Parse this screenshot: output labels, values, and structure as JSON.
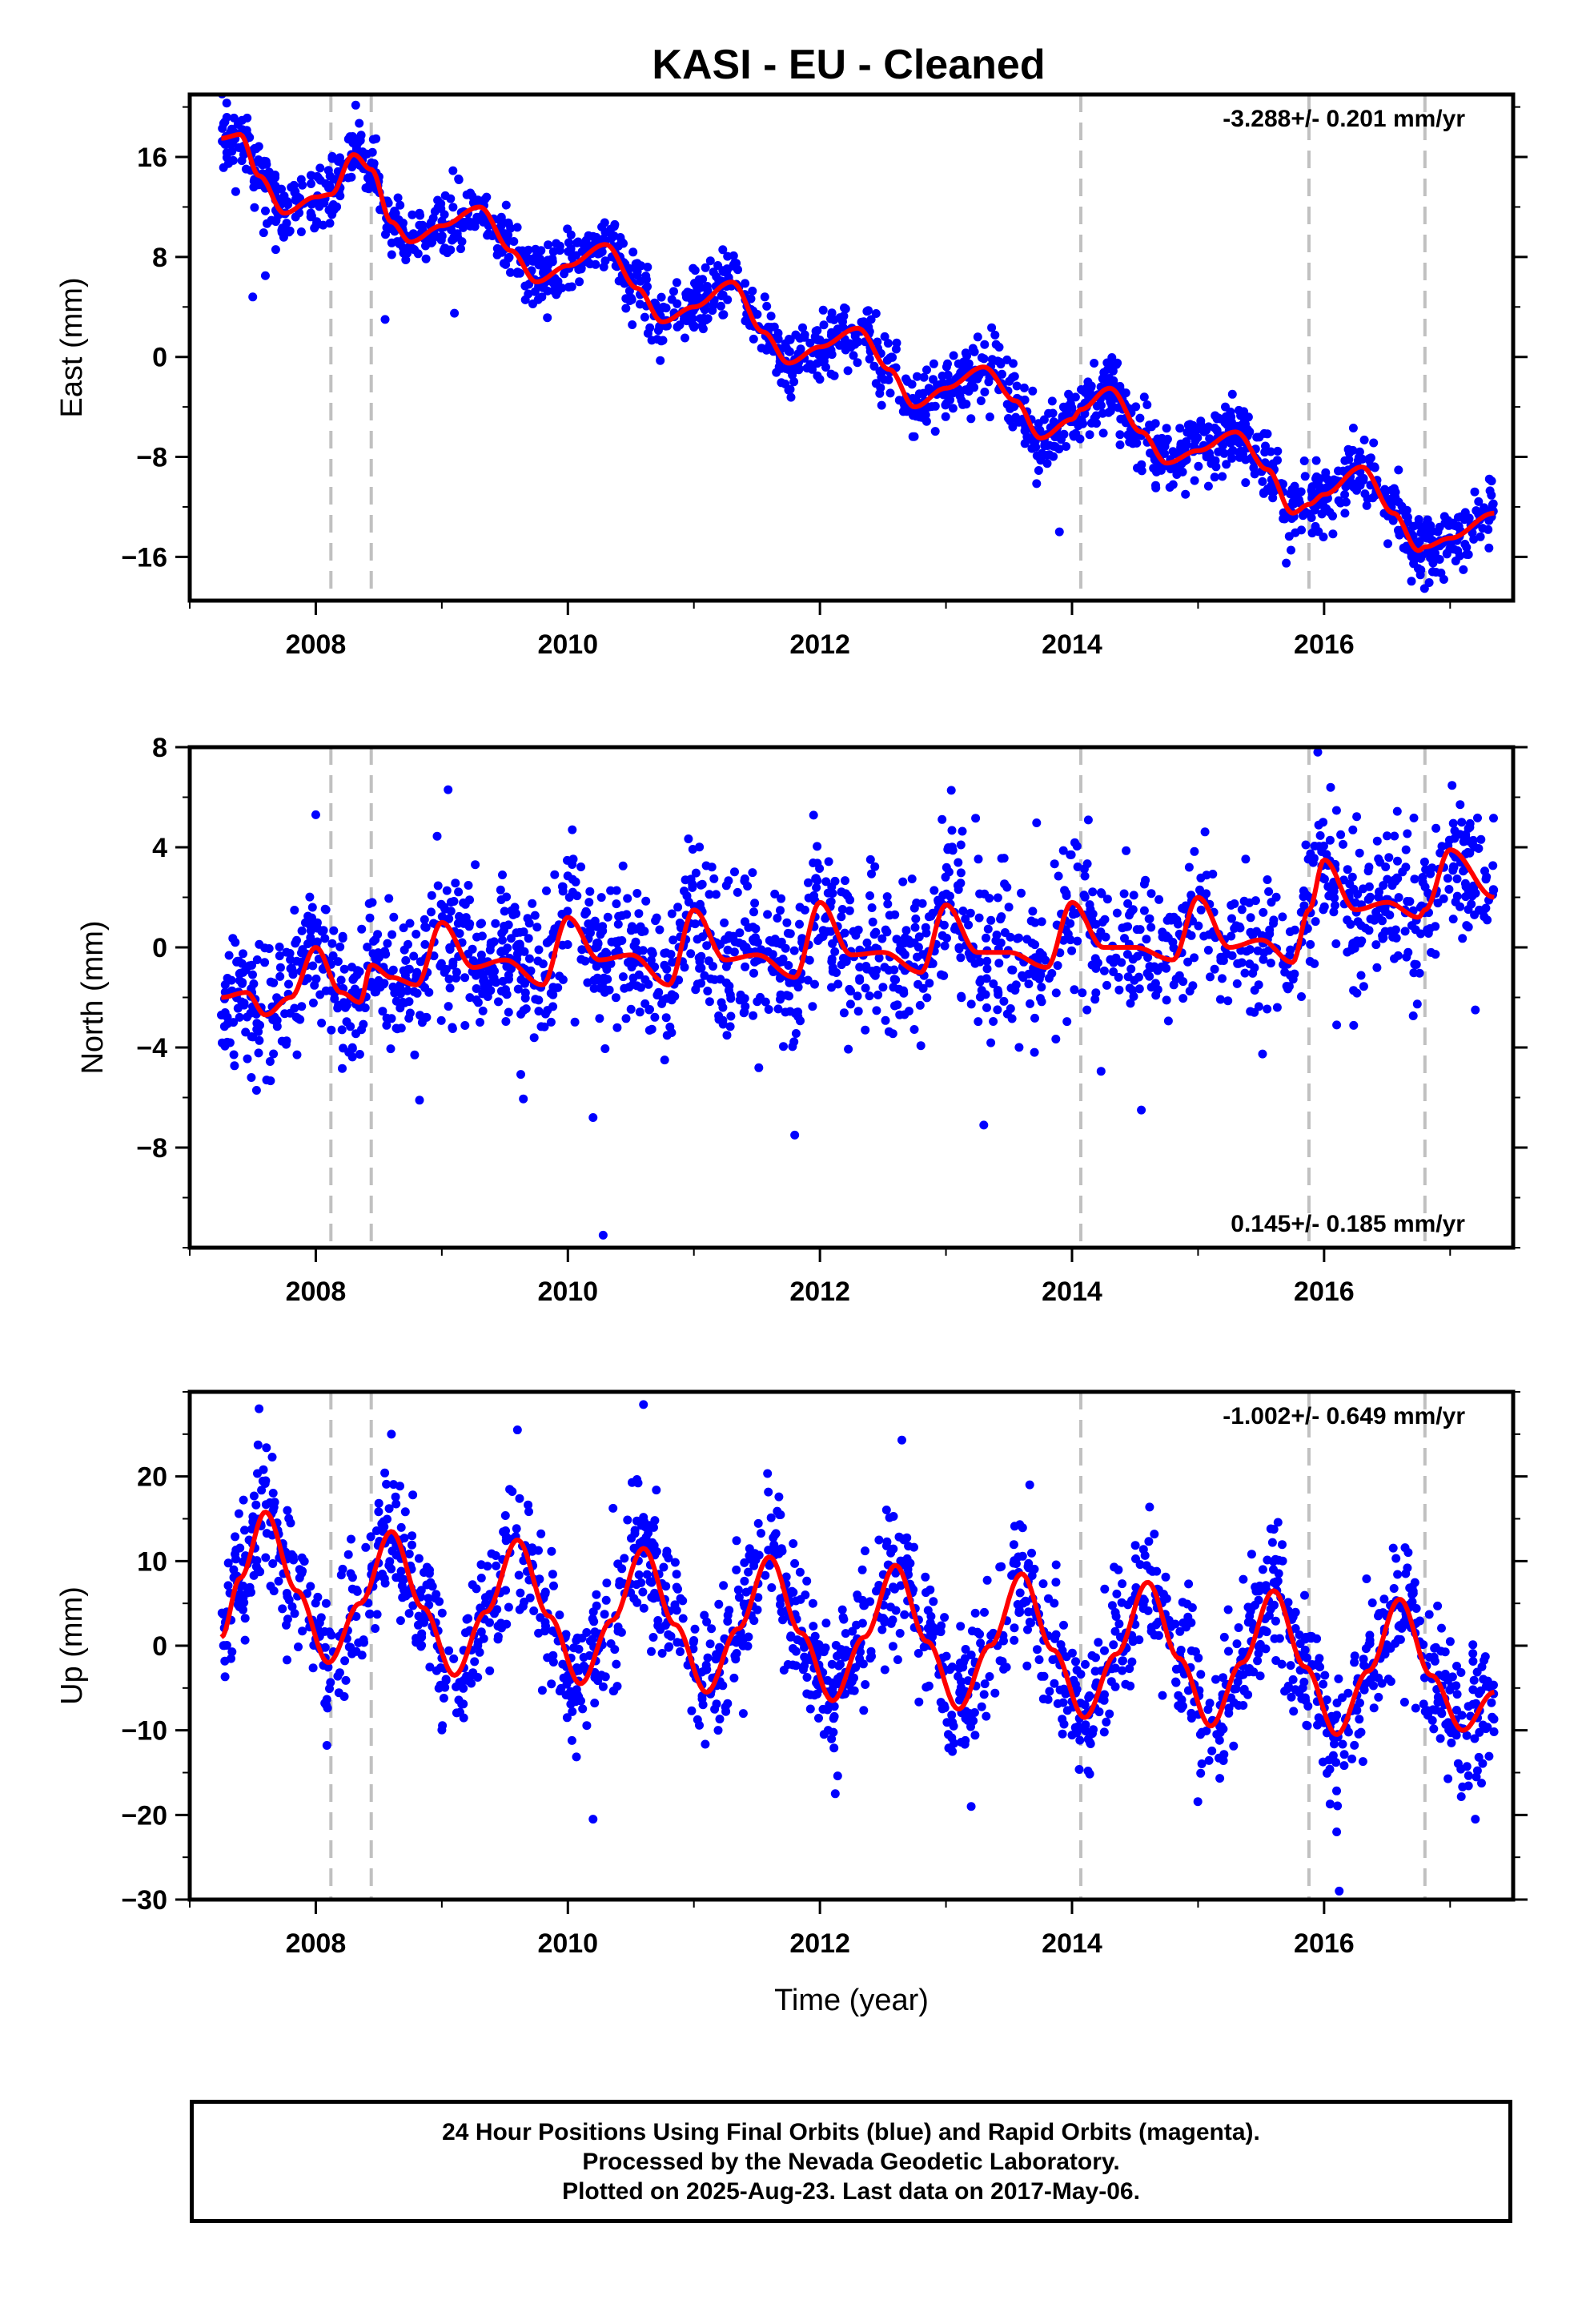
{
  "title": "KASI  - EU - Cleaned",
  "footer": {
    "line1": "24 Hour Positions Using Final Orbits (blue) and Rapid Orbits (magenta).",
    "line2": "Processed by the Nevada Geodetic Laboratory.",
    "line3": "Plotted on 2025-Aug-23. Last data on 2017-May-06."
  },
  "colors": {
    "observations": "#0000ff",
    "model": "#ff0000",
    "steps": "#c0c0c0"
  },
  "chart_data": [
    {
      "type": "scatter",
      "component": "east",
      "ylabel": "East (mm)",
      "xlabel": "",
      "xlim": [
        2007.0,
        2017.5
      ],
      "ylim": [
        -19.5,
        21
      ],
      "xticks": [
        2008,
        2010,
        2012,
        2014,
        2016
      ],
      "yticks": [
        -16,
        -8,
        0,
        8,
        16
      ],
      "rate_label": "-3.288+/- 0.201 mm/yr",
      "rate_position": "top-right",
      "step_lines": [
        2008.12,
        2008.44,
        2014.07,
        2015.88,
        2016.8
      ],
      "data_start": 2007.25,
      "data_end": 2017.35,
      "model": {
        "x": [
          2007.25,
          2007.4,
          2007.55,
          2007.75,
          2008.0,
          2008.12,
          2008.3,
          2008.44,
          2008.6,
          2008.75,
          2009.0,
          2009.3,
          2009.55,
          2009.75,
          2010.0,
          2010.3,
          2010.55,
          2010.75,
          2011.0,
          2011.3,
          2011.55,
          2011.75,
          2012.0,
          2012.3,
          2012.55,
          2012.75,
          2013.0,
          2013.3,
          2013.55,
          2013.75,
          2014.0,
          2014.07,
          2014.3,
          2014.55,
          2014.75,
          2015.0,
          2015.3,
          2015.55,
          2015.75,
          2015.88,
          2016.0,
          2016.3,
          2016.55,
          2016.75,
          2016.8,
          2017.0,
          2017.35
        ],
        "y": [
          17.5,
          17.8,
          14.5,
          11.5,
          12.8,
          13.0,
          16.2,
          15.0,
          10.8,
          9.2,
          10.5,
          12.0,
          8.5,
          6.0,
          7.3,
          9.0,
          5.5,
          2.8,
          4.0,
          6.0,
          2.0,
          -0.5,
          0.8,
          2.3,
          -1.0,
          -4.0,
          -2.5,
          -0.8,
          -3.5,
          -6.5,
          -5.0,
          -4.2,
          -2.5,
          -6.0,
          -8.5,
          -7.5,
          -6.0,
          -9.0,
          -12.5,
          -11.8,
          -11.0,
          -8.8,
          -12.5,
          -15.5,
          -15.2,
          -14.5,
          -12.5
        ]
      },
      "noise_sigma": 1.3,
      "outliers": [
        [
          2007.5,
          4.8
        ],
        [
          2007.6,
          6.5
        ],
        [
          2008.55,
          3.0
        ],
        [
          2009.1,
          3.5
        ],
        [
          2013.9,
          -14.0
        ],
        [
          2015.7,
          -16.5
        ],
        [
          2016.95,
          -17.8
        ]
      ]
    },
    {
      "type": "scatter",
      "component": "north",
      "ylabel": "North (mm)",
      "xlabel": "",
      "xlim": [
        2007.0,
        2017.5
      ],
      "ylim": [
        -12,
        8
      ],
      "xticks": [
        2008,
        2010,
        2012,
        2014,
        2016
      ],
      "yticks": [
        -8,
        -4,
        0,
        4,
        8
      ],
      "rate_label": "0.145+/- 0.185 mm/yr",
      "rate_position": "bottom-right",
      "step_lines": [
        2008.12,
        2008.44,
        2014.07,
        2015.88,
        2016.8
      ],
      "data_start": 2007.25,
      "data_end": 2017.35,
      "model": {
        "x": [
          2007.25,
          2007.45,
          2007.6,
          2007.8,
          2008.0,
          2008.2,
          2008.35,
          2008.44,
          2008.6,
          2008.8,
          2009.0,
          2009.25,
          2009.5,
          2009.8,
          2010.0,
          2010.25,
          2010.5,
          2010.8,
          2011.0,
          2011.25,
          2011.5,
          2011.8,
          2012.0,
          2012.25,
          2012.5,
          2012.8,
          2013.0,
          2013.25,
          2013.5,
          2013.8,
          2014.0,
          2014.25,
          2014.5,
          2014.8,
          2015.0,
          2015.25,
          2015.5,
          2015.75,
          2015.88,
          2016.0,
          2016.25,
          2016.5,
          2016.75,
          2016.8,
          2017.0,
          2017.35
        ],
        "y": [
          -2.0,
          -1.8,
          -2.7,
          -2.0,
          0.0,
          -1.8,
          -2.2,
          -0.7,
          -1.2,
          -1.5,
          1.0,
          -0.8,
          -0.5,
          -1.5,
          1.2,
          -0.5,
          -0.3,
          -1.5,
          1.5,
          -0.5,
          -0.3,
          -1.2,
          1.8,
          -0.3,
          -0.2,
          -1.0,
          1.7,
          -0.2,
          -0.2,
          -0.8,
          1.8,
          0.0,
          0.0,
          -0.5,
          2.0,
          0.0,
          0.3,
          -0.6,
          1.5,
          3.5,
          1.5,
          1.8,
          1.2,
          1.5,
          3.9,
          2.0
        ]
      },
      "noise_sigma": 1.5,
      "outliers": [
        [
          2008.0,
          5.3
        ],
        [
          2009.05,
          6.3
        ],
        [
          2010.2,
          -6.8
        ],
        [
          2010.28,
          -11.5
        ],
        [
          2011.8,
          -7.5
        ],
        [
          2013.3,
          -7.1
        ],
        [
          2014.55,
          -6.5
        ],
        [
          2015.95,
          7.8
        ],
        [
          2016.1,
          -3.1
        ],
        [
          2017.2,
          -2.5
        ]
      ]
    },
    {
      "type": "scatter",
      "component": "up",
      "ylabel": "Up (mm)",
      "xlabel": "Time (year)",
      "xlim": [
        2007.0,
        2017.5
      ],
      "ylim": [
        -30,
        30
      ],
      "xticks": [
        2008,
        2010,
        2012,
        2014,
        2016
      ],
      "yticks": [
        -30,
        -20,
        -10,
        0,
        10,
        20
      ],
      "rate_label": "-1.002+/- 0.649 mm/yr",
      "rate_position": "top-right",
      "step_lines": [
        2008.12,
        2008.44,
        2014.07,
        2015.88,
        2016.8
      ],
      "data_start": 2007.25,
      "data_end": 2017.35,
      "model": {
        "x": [
          2007.25,
          2007.4,
          2007.6,
          2007.85,
          2008.1,
          2008.35,
          2008.6,
          2008.85,
          2009.1,
          2009.35,
          2009.6,
          2009.85,
          2010.1,
          2010.35,
          2010.6,
          2010.85,
          2011.1,
          2011.35,
          2011.6,
          2011.85,
          2012.1,
          2012.35,
          2012.6,
          2012.85,
          2013.1,
          2013.35,
          2013.6,
          2013.85,
          2014.1,
          2014.35,
          2014.6,
          2014.85,
          2015.1,
          2015.35,
          2015.6,
          2015.85,
          2016.1,
          2016.35,
          2016.6,
          2016.85,
          2017.1,
          2017.35
        ],
        "y": [
          1.0,
          8.0,
          15.8,
          6.5,
          -2.0,
          5.0,
          13.5,
          4.5,
          -3.5,
          4.0,
          12.5,
          3.5,
          -4.5,
          3.0,
          11.5,
          2.5,
          -5.5,
          2.0,
          10.5,
          1.5,
          -6.5,
          1.0,
          9.5,
          0.5,
          -7.5,
          0.0,
          8.5,
          -0.5,
          -8.5,
          -1.0,
          7.5,
          -1.5,
          -9.5,
          -2.0,
          6.5,
          -2.5,
          -10.5,
          -3.0,
          5.5,
          -3.5,
          -10.0,
          -5.5
        ]
      },
      "noise_sigma": 4.0,
      "outliers": [
        [
          2007.55,
          28.0
        ],
        [
          2008.6,
          25.0
        ],
        [
          2009.6,
          25.5
        ],
        [
          2010.6,
          28.5
        ],
        [
          2012.65,
          24.3
        ],
        [
          2010.2,
          -20.5
        ],
        [
          2013.2,
          -19.0
        ],
        [
          2016.1,
          -22.0
        ],
        [
          2016.12,
          -29.0
        ],
        [
          2017.2,
          -20.5
        ]
      ]
    }
  ]
}
